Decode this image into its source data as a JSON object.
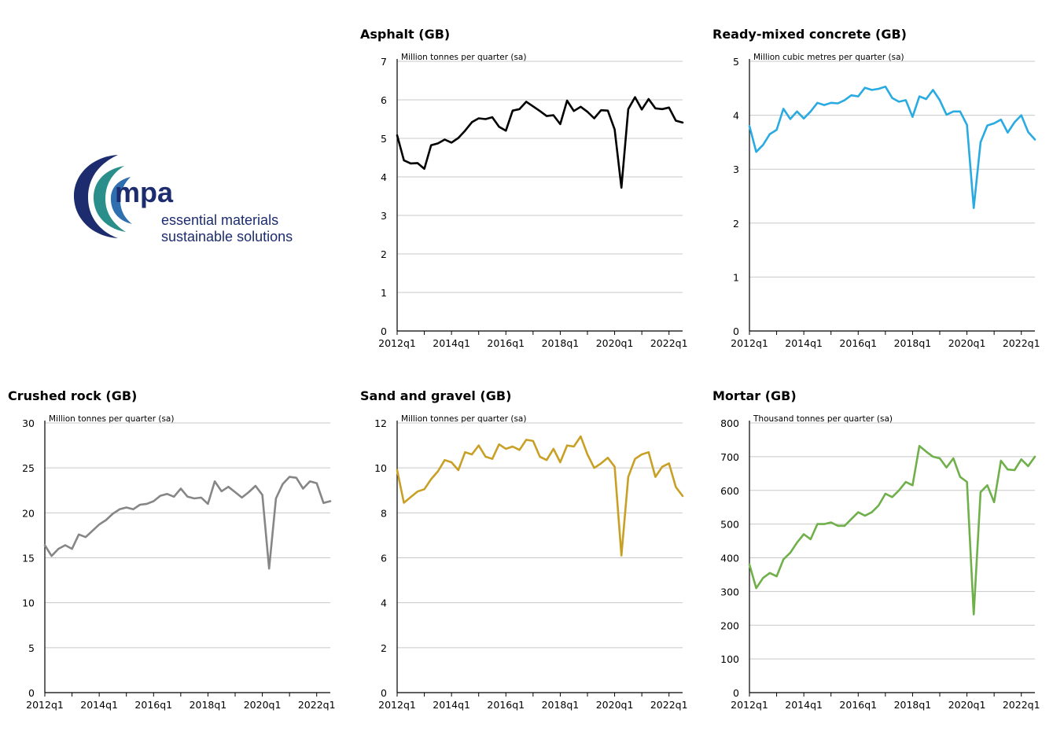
{
  "logo": {
    "brand": "mpa",
    "tagline_1": "essential materials",
    "tagline_2": "sustainable solutions",
    "colors": {
      "navy": "#1c2c6e",
      "teal": "#2a8f8a",
      "blue": "#2f6fb0",
      "text": "#1c2c6e"
    }
  },
  "chart_data": [
    {
      "id": "asphalt",
      "type": "line",
      "title": "Asphalt (GB)",
      "ylabel": "Million tonnes per quarter (sa)",
      "ylim": [
        0,
        7
      ],
      "yticks": [
        0,
        1,
        2,
        3,
        4,
        5,
        6,
        7
      ],
      "xtick_labels": [
        "2012q1",
        "2014q1",
        "2016q1",
        "2018q1",
        "2020q1",
        "2022q1"
      ],
      "xtick_index": [
        0,
        8,
        16,
        24,
        32,
        40
      ],
      "grid": true,
      "color": "#000000",
      "values": [
        5.08,
        4.43,
        4.35,
        4.36,
        4.21,
        4.82,
        4.87,
        4.97,
        4.89,
        5.01,
        5.2,
        5.42,
        5.52,
        5.5,
        5.55,
        5.3,
        5.2,
        5.72,
        5.76,
        5.95,
        5.83,
        5.71,
        5.58,
        5.6,
        5.37,
        5.98,
        5.71,
        5.82,
        5.69,
        5.52,
        5.73,
        5.72,
        5.23,
        3.72,
        5.76,
        6.07,
        5.75,
        6.02,
        5.78,
        5.76,
        5.8,
        5.46,
        5.41
      ]
    },
    {
      "id": "ready-mixed-concrete",
      "type": "line",
      "title": "Ready-mixed concrete (GB)",
      "ylabel": "Million cubic metres per quarter (sa)",
      "ylim": [
        0,
        5
      ],
      "yticks": [
        0,
        1,
        2,
        3,
        4,
        5
      ],
      "xtick_labels": [
        "2012q1",
        "2014q1",
        "2016q1",
        "2018q1",
        "2020q1",
        "2022q1"
      ],
      "xtick_index": [
        0,
        8,
        16,
        24,
        32,
        40
      ],
      "grid": true,
      "color": "#29abe2",
      "values": [
        3.8,
        3.32,
        3.45,
        3.65,
        3.73,
        4.12,
        3.93,
        4.07,
        3.94,
        4.07,
        4.23,
        4.19,
        4.23,
        4.22,
        4.28,
        4.37,
        4.35,
        4.51,
        4.47,
        4.49,
        4.53,
        4.32,
        4.25,
        4.28,
        3.97,
        4.35,
        4.3,
        4.47,
        4.28,
        4.01,
        4.07,
        4.07,
        3.82,
        2.28,
        3.5,
        3.81,
        3.85,
        3.92,
        3.68,
        3.87,
        4.0,
        3.69,
        3.55
      ]
    },
    {
      "id": "crushed-rock",
      "type": "line",
      "title": "Crushed rock (GB)",
      "ylabel": "Million tonnes per quarter (sa)",
      "ylim": [
        0,
        30
      ],
      "yticks": [
        0,
        5,
        10,
        15,
        20,
        25,
        30
      ],
      "xtick_labels": [
        "2012q1",
        "2014q1",
        "2016q1",
        "2018q1",
        "2020q1",
        "2022q1"
      ],
      "xtick_index": [
        0,
        8,
        16,
        24,
        32,
        40
      ],
      "grid": true,
      "color": "#868686",
      "values": [
        16.4,
        15.2,
        16.0,
        16.4,
        16.0,
        17.6,
        17.3,
        18.0,
        18.7,
        19.2,
        19.9,
        20.4,
        20.6,
        20.4,
        20.9,
        21.0,
        21.3,
        21.9,
        22.1,
        21.8,
        22.7,
        21.8,
        21.6,
        21.7,
        21.0,
        23.5,
        22.4,
        22.9,
        22.3,
        21.7,
        22.3,
        23.0,
        22.0,
        13.8,
        21.6,
        23.2,
        24.0,
        23.9,
        22.7,
        23.5,
        23.3,
        21.1,
        21.3
      ]
    },
    {
      "id": "sand-and-gravel",
      "type": "line",
      "title": "Sand and gravel (GB)",
      "ylabel": "Million tonnes per quarter (sa)",
      "ylim": [
        0,
        12
      ],
      "yticks": [
        0,
        2,
        4,
        6,
        8,
        10,
        12
      ],
      "xtick_labels": [
        "2012q1",
        "2014q1",
        "2016q1",
        "2018q1",
        "2020q1",
        "2022q1"
      ],
      "xtick_index": [
        0,
        8,
        16,
        24,
        32,
        40
      ],
      "grid": true,
      "color": "#c9a026",
      "values": [
        9.9,
        8.45,
        8.7,
        8.95,
        9.05,
        9.5,
        9.85,
        10.35,
        10.25,
        9.9,
        10.7,
        10.6,
        11.0,
        10.5,
        10.4,
        11.05,
        10.85,
        10.95,
        10.8,
        11.25,
        11.2,
        10.5,
        10.35,
        10.85,
        10.25,
        11.0,
        10.95,
        11.4,
        10.6,
        10.0,
        10.2,
        10.45,
        10.05,
        6.1,
        9.6,
        10.4,
        10.6,
        10.7,
        9.6,
        10.05,
        10.2,
        9.15,
        8.75
      ]
    },
    {
      "id": "mortar",
      "type": "line",
      "title": "Mortar (GB)",
      "ylabel": "Thousand tonnes per quarter (sa)",
      "ylim": [
        0,
        800
      ],
      "yticks": [
        0,
        100,
        200,
        300,
        400,
        500,
        600,
        700,
        800
      ],
      "xtick_labels": [
        "2012q1",
        "2014q1",
        "2016q1",
        "2018q1",
        "2020q1",
        "2022q1"
      ],
      "xtick_index": [
        0,
        8,
        16,
        24,
        32,
        40
      ],
      "grid": true,
      "color": "#6fb04a",
      "values": [
        380,
        310,
        340,
        355,
        345,
        395,
        415,
        445,
        470,
        455,
        500,
        500,
        505,
        495,
        495,
        515,
        535,
        525,
        535,
        555,
        590,
        580,
        600,
        625,
        615,
        732,
        715,
        700,
        695,
        668,
        695,
        640,
        625,
        232,
        595,
        615,
        565,
        688,
        662,
        660,
        692,
        672,
        700
      ]
    }
  ]
}
